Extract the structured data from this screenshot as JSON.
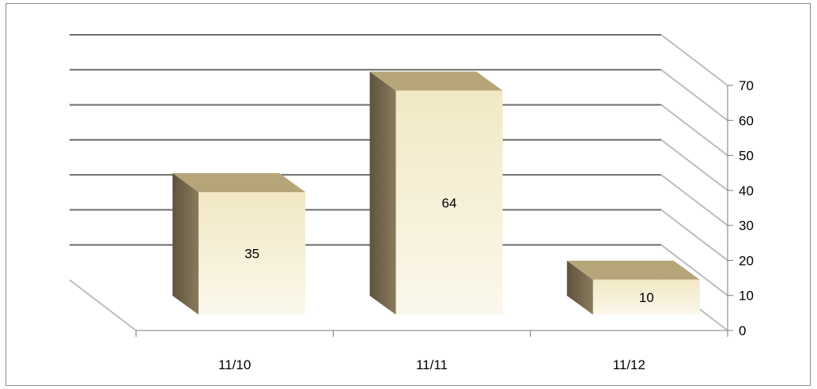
{
  "chart_data": {
    "type": "bar",
    "style": "3d-column",
    "categories": [
      "11/10",
      "11/11",
      "11/12"
    ],
    "series": [
      {
        "values": [
          35,
          64,
          10
        ]
      }
    ],
    "data_labels": [
      "35",
      "64",
      "10"
    ],
    "y_ticks": [
      "0",
      "10",
      "20",
      "30",
      "40",
      "50",
      "60",
      "70"
    ],
    "ylim": [
      0,
      70
    ],
    "y_axis_side": "right",
    "grid": true,
    "legend": "none",
    "colors": {
      "bar_front_top": "#f2e8c4",
      "bar_front_bottom": "#fbf8ec",
      "bar_side": "#6f6249",
      "bar_top": "#b7a57a",
      "gridline": "#6e6e6e",
      "depth_line": "#bdbdbd",
      "frame": "#8a8a8a"
    }
  }
}
